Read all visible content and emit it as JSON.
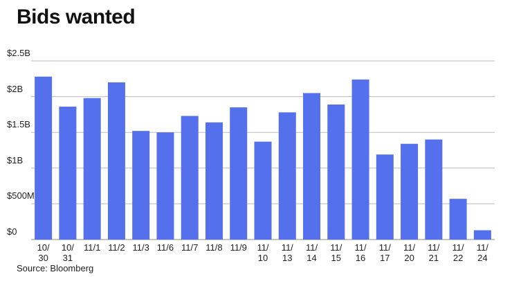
{
  "chart_data": {
    "type": "bar",
    "title": "Bids wanted",
    "source": "Source: Bloomberg",
    "categories": [
      "10/\n30",
      "10/\n31",
      "11/1",
      "11/2",
      "11/3",
      "11/6",
      "11/7",
      "11/8",
      "11/9",
      "11/\n10",
      "11/\n13",
      "11/\n14",
      "11/\n15",
      "11/\n16",
      "11/\n17",
      "11/\n20",
      "11/\n21",
      "11/\n22",
      "11/\n24"
    ],
    "values": [
      2280000000,
      1860000000,
      1980000000,
      2200000000,
      1520000000,
      1500000000,
      1730000000,
      1640000000,
      1850000000,
      1370000000,
      1780000000,
      2050000000,
      1890000000,
      2240000000,
      1190000000,
      1340000000,
      1400000000,
      570000000,
      130000000
    ],
    "color": "#5470ec",
    "ylim": [
      0,
      2500000000
    ],
    "yticks": [
      {
        "value": 0,
        "label": "$0"
      },
      {
        "value": 500000000,
        "label": "$500M"
      },
      {
        "value": 1000000000,
        "label": "$1B"
      },
      {
        "value": 1500000000,
        "label": "$1.5B"
      },
      {
        "value": 2000000000,
        "label": "$2B"
      },
      {
        "value": 2500000000,
        "label": "$2.5B"
      }
    ],
    "grid": true
  }
}
